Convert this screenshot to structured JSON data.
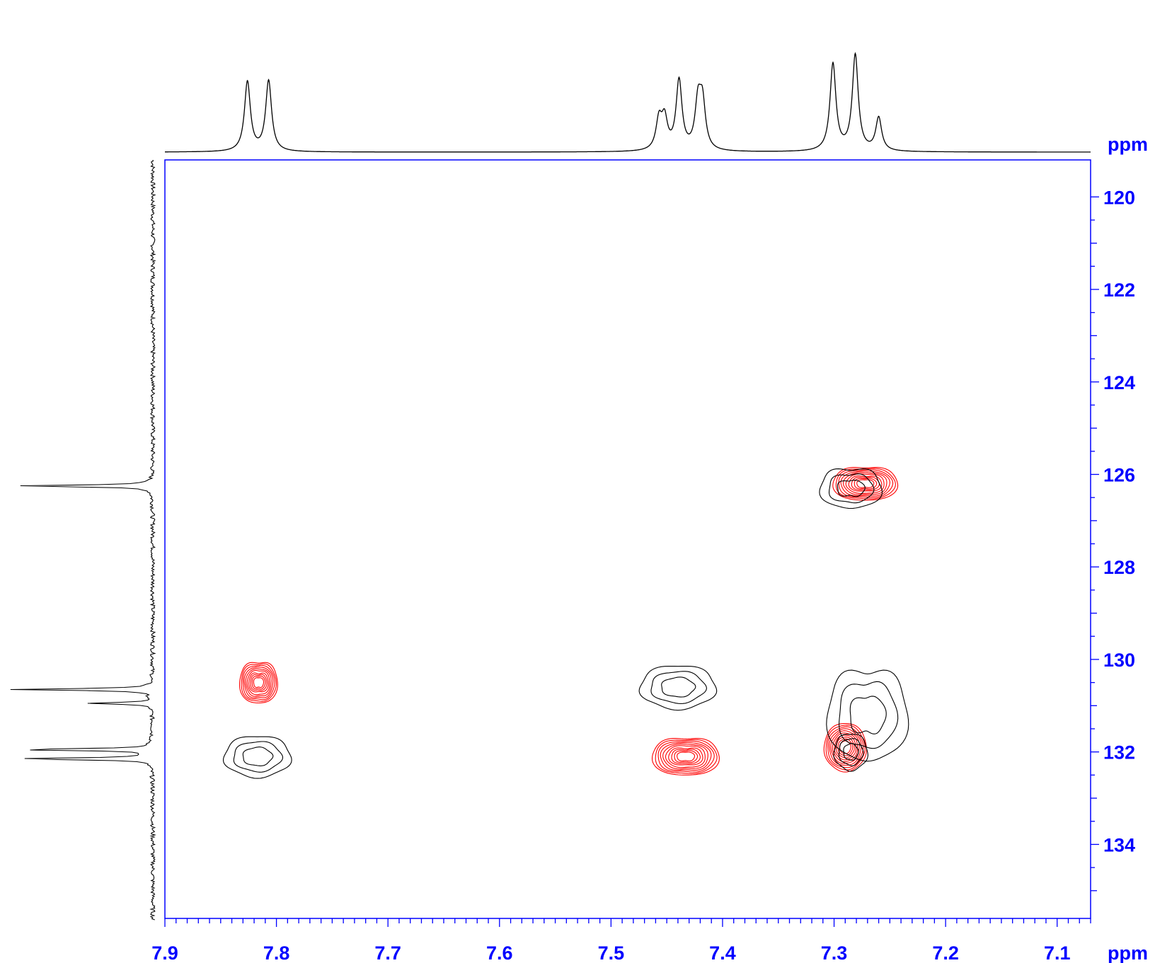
{
  "chart_data": {
    "type": "heatmap",
    "title": "",
    "xlabel": "ppm",
    "ylabel": "ppm",
    "xlim": [
      7.9,
      7.07
    ],
    "ylim": [
      119.2,
      135.6
    ],
    "x_ticks": [
      "7.9",
      "7.8",
      "7.7",
      "7.6",
      "7.5",
      "7.4",
      "7.3",
      "7.2",
      "7.1"
    ],
    "y_ticks": [
      "120",
      "122",
      "124",
      "126",
      "128",
      "130",
      "132",
      "134"
    ],
    "axis_color": "#0000ff",
    "grid": false,
    "series": [
      {
        "color": "#ff0000",
        "peaks": [
          {
            "x": 7.816,
            "y": 130.5,
            "wx": 0.034,
            "wy": 1.05,
            "lobes": 2
          },
          {
            "x": 7.433,
            "y": 132.1,
            "wx": 0.06,
            "wy": 0.95,
            "lobes": 3
          },
          {
            "x": 7.272,
            "y": 126.2,
            "wx": 0.058,
            "wy": 0.85,
            "lobes": 3
          },
          {
            "x": 7.29,
            "y": 131.9,
            "wx": 0.038,
            "wy": 1.05,
            "lobes": 1
          }
        ]
      },
      {
        "color": "#000000",
        "peaks": [
          {
            "x": 7.817,
            "y": 132.1,
            "wx": 0.06,
            "wy": 0.9,
            "lobes": 1
          },
          {
            "x": 7.44,
            "y": 130.6,
            "wx": 0.068,
            "wy": 0.95,
            "lobes": 1
          },
          {
            "x": 7.285,
            "y": 126.3,
            "wx": 0.055,
            "wy": 1.0,
            "lobes": 2
          },
          {
            "x": 7.27,
            "y": 131.2,
            "wx": 0.072,
            "wy": 2.3,
            "lobes": 2
          },
          {
            "x": 7.285,
            "y": 132.0,
            "wx": 0.03,
            "wy": 0.8,
            "lobes": 1
          }
        ]
      }
    ],
    "projection_f2_peaks": [
      {
        "x": 7.826,
        "h": 0.8
      },
      {
        "x": 7.807,
        "h": 0.81
      },
      {
        "x": 7.457,
        "h": 0.34
      },
      {
        "x": 7.452,
        "h": 0.34
      },
      {
        "x": 7.439,
        "h": 0.8
      },
      {
        "x": 7.422,
        "h": 0.52
      },
      {
        "x": 7.418,
        "h": 0.52
      },
      {
        "x": 7.301,
        "h": 1.0
      },
      {
        "x": 7.281,
        "h": 1.1
      },
      {
        "x": 7.26,
        "h": 0.38
      }
    ],
    "projection_f1_peaks": [
      {
        "y": 126.25,
        "h": 1.0
      },
      {
        "y": 130.65,
        "h": 1.0
      },
      {
        "y": 130.95,
        "h": 0.45
      },
      {
        "y": 131.95,
        "h": 1.0
      },
      {
        "y": 132.15,
        "h": 1.0
      }
    ]
  }
}
